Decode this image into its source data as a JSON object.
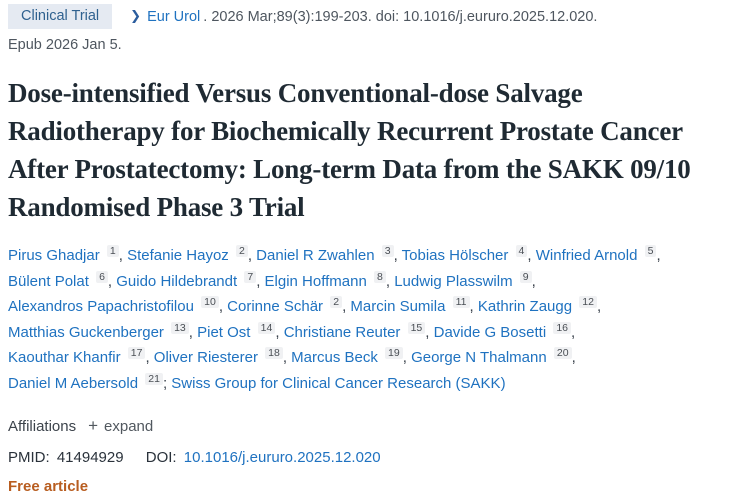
{
  "header": {
    "publication_type": "Clinical Trial",
    "journal": "Eur Urol",
    "citation_rest": ". 2026 Mar;89(3):199-203. doi: 10.1016/j.eururo.2025.12.020.",
    "epub": "Epub 2026 Jan 5."
  },
  "icons": {
    "chevron": "❯",
    "plus": "+"
  },
  "title": "Dose-intensified Versus Conventional-dose Salvage Radiotherapy for Biochemically Recurrent Prostate Cancer After Prostatectomy: Long-term Data from the SAKK 09/10 Randomised Phase 3 Trial",
  "authors": [
    {
      "name": "Pirus Ghadjar",
      "sup": "1"
    },
    {
      "name": "Stefanie Hayoz",
      "sup": "2"
    },
    {
      "name": "Daniel R Zwahlen",
      "sup": "3"
    },
    {
      "name": "Tobias Hölscher",
      "sup": "4"
    },
    {
      "name": "Winfried Arnold",
      "sup": "5"
    },
    {
      "name": "Bülent Polat",
      "sup": "6"
    },
    {
      "name": "Guido Hildebrandt",
      "sup": "7"
    },
    {
      "name": "Elgin Hoffmann",
      "sup": "8"
    },
    {
      "name": "Ludwig Plasswilm",
      "sup": "9"
    },
    {
      "name": "Alexandros Papachristofilou",
      "sup": "10"
    },
    {
      "name": "Corinne Schär",
      "sup": "2"
    },
    {
      "name": "Marcin Sumila",
      "sup": "11"
    },
    {
      "name": "Kathrin Zaugg",
      "sup": "12"
    },
    {
      "name": "Matthias Guckenberger",
      "sup": "13"
    },
    {
      "name": "Piet Ost",
      "sup": "14"
    },
    {
      "name": "Christiane Reuter",
      "sup": "15"
    },
    {
      "name": "Davide G Bosetti",
      "sup": "16"
    },
    {
      "name": "Kaouthar Khanfir",
      "sup": "17"
    },
    {
      "name": "Oliver Riesterer",
      "sup": "18"
    },
    {
      "name": "Marcus Beck",
      "sup": "19"
    },
    {
      "name": "George N Thalmann",
      "sup": "20"
    },
    {
      "name": "Daniel M Aebersold",
      "sup": "21"
    }
  ],
  "collective_author": "Swiss Group for Clinical Cancer Research (SAKK)",
  "affiliations": {
    "label": "Affiliations",
    "expand_label": "expand"
  },
  "identifiers": {
    "pmid_label": "PMID:",
    "pmid": "41494929",
    "doi_label": "DOI:",
    "doi": "10.1016/j.eururo.2025.12.020"
  },
  "free_article": "Free article",
  "colors": {
    "link_blue": "#1f72c0",
    "badge_background": "#e5eaf2",
    "badge_text": "#2f618f",
    "title_text": "#1f2a33",
    "meta_grey": "#4e565f",
    "free_article_orange": "#b85d20",
    "sup_badge_background": "#f0f1f3"
  }
}
